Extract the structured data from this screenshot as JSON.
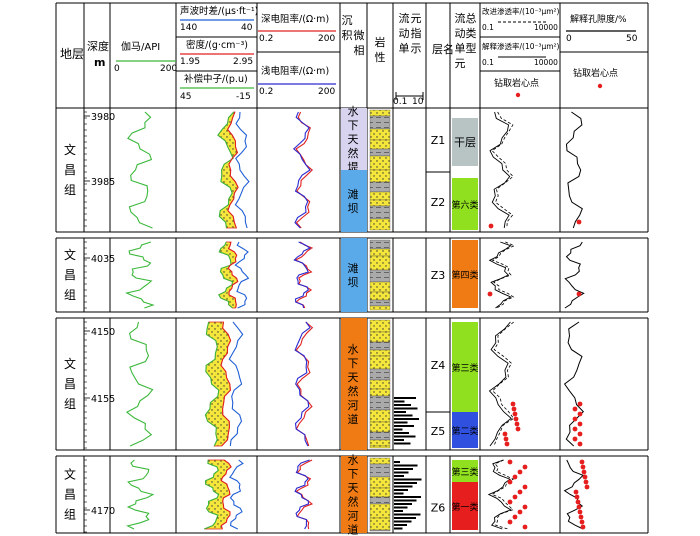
{
  "header": {
    "formation_title": "地层",
    "depth_title": "深度",
    "depth_unit": "m",
    "gamma_label": "伽马/API",
    "gamma_min": "0",
    "gamma_max": "200",
    "ac_label": "声波时差/(μs·ft⁻¹)",
    "ac_min": "140",
    "ac_max": "40",
    "den_label": "密度/(g·cm⁻³)",
    "den_min": "1.95",
    "den_max": "2.95",
    "cnl_label": "补偿中子/(p.u)",
    "cnl_min": "45",
    "cnl_max": "-15",
    "deep_res_label": "深电阻率/(Ω·m)",
    "deep_res_min": "0.2",
    "deep_res_max": "200",
    "shallow_res_label": "浅电阻率/(Ω·m)",
    "shallow_res_min": "0.2",
    "shallow_res_max": "200",
    "facies_title": "沉积微相",
    "lithology_title": "岩性",
    "fzi_title": "流动单元指示",
    "fzi_min": "0.1",
    "fzi_max": "10",
    "layer_title": "层名",
    "flow_unit_title": "流动单元总类型",
    "improved_perm_label": "改进渗透率/(10⁻³μm²)",
    "improved_perm_min": "0.1",
    "improved_perm_max": "10000",
    "interp_perm_label": "解释渗透率/(10⁻³μm²)",
    "interp_perm_min": "0.1",
    "interp_perm_max": "10000",
    "core_point_label": "钻取岩心点",
    "porosity_label": "解释孔隙度/%",
    "porosity_min": "0",
    "porosity_max": "50",
    "core_point_label2": "钻取岩心点"
  },
  "formation_name": "文昌组",
  "panels": [
    {
      "depth_ticks": [
        "3980",
        "3985"
      ],
      "facies": [
        "水下天然堤",
        "滩坝"
      ],
      "layers": [
        "Z1",
        "Z2"
      ],
      "flow_units": [
        "干层",
        "第六类"
      ]
    },
    {
      "depth_ticks": [
        "4035"
      ],
      "facies": [
        "滩坝"
      ],
      "layers": [
        "Z3"
      ],
      "flow_units": [
        "第四类"
      ]
    },
    {
      "depth_ticks": [
        "4150",
        "4155"
      ],
      "facies": [
        "水下天然河道"
      ],
      "layers": [
        "Z4",
        "Z5"
      ],
      "flow_units": [
        "第三类",
        "第二类"
      ]
    },
    {
      "depth_ticks": [
        "4170"
      ],
      "facies": [
        "水下天然河道"
      ],
      "layers": [
        "Z6"
      ],
      "flow_units": [
        "第三类",
        "第一类"
      ]
    }
  ],
  "colors": {
    "gamma": "#3cb83c",
    "acoustic": "#1f5fd6",
    "density": "#e02020",
    "neutron": "#3cb83c",
    "deep_res": "#e02020",
    "shallow_res": "#2a2ad0",
    "levee_fill": "#d8d4f0",
    "bar_fill": "#5aa9e8",
    "channel_fill": "#f07b14",
    "sand_fill": "#f5e63c",
    "dry_layer": "#b8c4c4",
    "class6": "#90e020",
    "class4": "#f07b14",
    "class3": "#90e020",
    "class2": "#3050e0",
    "class1": "#e61e1e",
    "core_point": "#e61e1e"
  }
}
